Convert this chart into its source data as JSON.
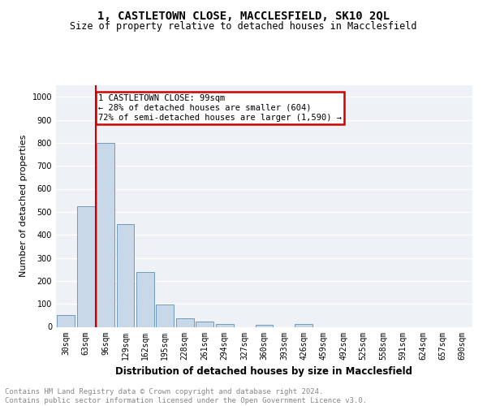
{
  "title": "1, CASTLETOWN CLOSE, MACCLESFIELD, SK10 2QL",
  "subtitle": "Size of property relative to detached houses in Macclesfield",
  "xlabel": "Distribution of detached houses by size in Macclesfield",
  "ylabel": "Number of detached properties",
  "bar_color": "#c8d8e8",
  "bar_edge_color": "#6090b0",
  "categories": [
    "30sqm",
    "63sqm",
    "96sqm",
    "129sqm",
    "162sqm",
    "195sqm",
    "228sqm",
    "261sqm",
    "294sqm",
    "327sqm",
    "360sqm",
    "393sqm",
    "426sqm",
    "459sqm",
    "492sqm",
    "525sqm",
    "558sqm",
    "591sqm",
    "624sqm",
    "657sqm",
    "690sqm"
  ],
  "values": [
    52,
    525,
    800,
    448,
    240,
    98,
    38,
    22,
    12,
    0,
    10,
    0,
    12,
    0,
    0,
    0,
    0,
    0,
    0,
    0,
    0
  ],
  "ylim": [
    0,
    1050
  ],
  "yticks": [
    0,
    100,
    200,
    300,
    400,
    500,
    600,
    700,
    800,
    900,
    1000
  ],
  "property_line_x": 1.5,
  "annotation_text": "1 CASTLETOWN CLOSE: 99sqm\n← 28% of detached houses are smaller (604)\n72% of semi-detached houses are larger (1,590) →",
  "annotation_box_color": "#ffffff",
  "annotation_box_edge": "#cc0000",
  "property_line_color": "#cc0000",
  "footer_text": "Contains HM Land Registry data © Crown copyright and database right 2024.\nContains public sector information licensed under the Open Government Licence v3.0.",
  "background_color": "#eef2f6",
  "grid_color": "#ffffff",
  "title_fontsize": 10,
  "subtitle_fontsize": 8.5,
  "xlabel_fontsize": 8.5,
  "ylabel_fontsize": 8,
  "tick_fontsize": 7,
  "footer_fontsize": 6.5,
  "annotation_fontsize": 7.5
}
